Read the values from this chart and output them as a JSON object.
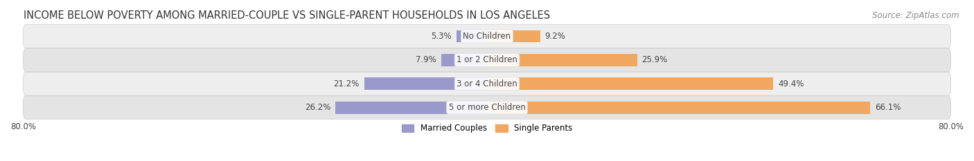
{
  "title": "INCOME BELOW POVERTY AMONG MARRIED-COUPLE VS SINGLE-PARENT HOUSEHOLDS IN LOS ANGELES",
  "source": "Source: ZipAtlas.com",
  "categories": [
    "No Children",
    "1 or 2 Children",
    "3 or 4 Children",
    "5 or more Children"
  ],
  "married_values": [
    5.3,
    7.9,
    21.2,
    26.2
  ],
  "single_values": [
    9.2,
    25.9,
    49.4,
    66.1
  ],
  "married_color": "#9999cc",
  "single_color": "#f0a860",
  "row_bg_even": "#eeeeee",
  "row_bg_odd": "#e4e4e4",
  "max_val": 80.0,
  "title_fontsize": 10.5,
  "source_fontsize": 8.5,
  "label_fontsize": 8.5,
  "bar_height": 0.52,
  "legend_labels": [
    "Married Couples",
    "Single Parents"
  ],
  "xlabel_val": "80.0%"
}
